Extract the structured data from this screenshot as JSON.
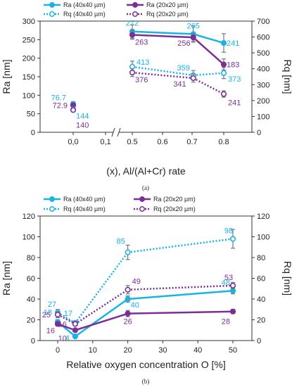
{
  "colors": {
    "ra40": "#19b3e6",
    "ra20": "#7a2f96",
    "rq40": "#19b3e6",
    "rq20": "#7a2f96",
    "err": "#777777"
  },
  "chart_data": [
    {
      "panel_label": "(a)",
      "type": "line",
      "xlabel": "(x), Al/(Al+Cr) rate",
      "ylabel_left": "Ra [nm]",
      "ylabel_right": "Rq [nm]",
      "ylim_left": [
        0,
        300
      ],
      "ylim_right": [
        0,
        700
      ],
      "yticks_left": [
        "0",
        "50",
        "100",
        "150",
        "200",
        "250",
        "300"
      ],
      "yticks_right": [
        "0",
        "100",
        "200",
        "300",
        "400",
        "500",
        "600",
        "700"
      ],
      "xticks": [
        "0,0",
        "0,1",
        "0.5",
        "0.6",
        "0.7",
        "0.8"
      ],
      "axis_break": true,
      "grid": false,
      "legend_position": "top",
      "series": [
        {
          "name": "Ra (40x40 µm)",
          "axis": "left",
          "style": "solid",
          "x": [
            0.0,
            0.5,
            0.7,
            0.8
          ],
          "y": [
            76.7,
            272,
            265,
            241
          ],
          "err": [
            6,
            18,
            22,
            25
          ],
          "labels": [
            "76.7",
            "272",
            "265",
            "241"
          ]
        },
        {
          "name": "Ra (20x20 µm)",
          "axis": "left",
          "style": "solid",
          "x": [
            0.0,
            0.5,
            0.7,
            0.8
          ],
          "y": [
            72.9,
            263,
            256,
            183
          ],
          "err": [
            5,
            12,
            10,
            15
          ],
          "labels": [
            "72.9",
            "263",
            "256",
            "183"
          ]
        },
        {
          "name": "Rq (40x40 µm)",
          "axis": "right",
          "style": "dotted",
          "x": [
            0.0,
            0.5,
            0.7,
            0.8
          ],
          "y": [
            144,
            413,
            359,
            373
          ],
          "err": [
            10,
            35,
            30,
            35
          ],
          "labels": [
            "144",
            "413",
            "359",
            "373"
          ]
        },
        {
          "name": "Rq (20x20 µm)",
          "axis": "right",
          "style": "dotted",
          "x": [
            0.0,
            0.5,
            0.7,
            0.8
          ],
          "y": [
            140,
            376,
            341,
            241
          ],
          "err": [
            8,
            25,
            25,
            20
          ],
          "labels": [
            "140",
            "376",
            "341",
            "241"
          ]
        }
      ]
    },
    {
      "panel_label": "(b)",
      "type": "line",
      "xlabel": "Relative oxygen concentration O [%]",
      "ylabel_left": "Ra [nm]",
      "ylabel_right": "Rq [nm]",
      "ylim_left": [
        0,
        120
      ],
      "ylim_right": [
        0,
        120
      ],
      "xlim": [
        -5,
        55
      ],
      "yticks_left": [
        "0",
        "20",
        "40",
        "60",
        "80",
        "100",
        "120"
      ],
      "yticks_right": [
        "0",
        "20",
        "40",
        "60",
        "80",
        "100",
        "120"
      ],
      "xticks": [
        "0",
        "10",
        "20",
        "30",
        "40",
        "50"
      ],
      "grid": false,
      "legend_position": "top",
      "series": [
        {
          "name": "Ra (40x40 µm)",
          "axis": "left",
          "style": "solid",
          "x": [
            0,
            5,
            20,
            50
          ],
          "y": [
            18,
            4,
            40,
            48
          ],
          "err": [
            2,
            1.5,
            3,
            3
          ],
          "labels": [
            "18",
            "4",
            "40",
            "48"
          ]
        },
        {
          "name": "Ra (20x20 µm)",
          "axis": "left",
          "style": "solid",
          "x": [
            0,
            5,
            20,
            50
          ],
          "y": [
            16,
            10,
            26,
            28
          ],
          "err": [
            2,
            1,
            3,
            2
          ],
          "labels": [
            "16",
            "10",
            "26",
            "28"
          ]
        },
        {
          "name": "Rq (40x40 µm)",
          "axis": "right",
          "style": "dotted",
          "x": [
            0,
            5,
            20,
            50
          ],
          "y": [
            27,
            17,
            85,
            98
          ],
          "err": [
            3,
            2,
            7,
            9
          ],
          "labels": [
            "27",
            "17",
            "85",
            "98"
          ]
        },
        {
          "name": "Rq (20x20 µm)",
          "axis": "right",
          "style": "dotted",
          "x": [
            0,
            5,
            20,
            50
          ],
          "y": [
            25,
            16,
            49,
            53
          ],
          "err": [
            3,
            2,
            4,
            3
          ],
          "labels": [
            "25",
            "16",
            "49",
            "53"
          ]
        }
      ]
    }
  ]
}
